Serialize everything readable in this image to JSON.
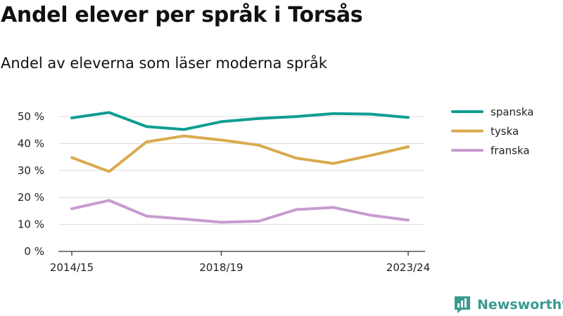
{
  "page": {
    "title": "Andel elever per språk i Torsås",
    "subtitle": "Andel av eleverna som läser moderna språk",
    "brand": "Newsworthy"
  },
  "chart_data": {
    "type": "line",
    "x_tick_labels": [
      "2014/15",
      "2018/19",
      "2023/24"
    ],
    "x_tick_indices": [
      0,
      4,
      9
    ],
    "y_tick_labels": [
      "0 %",
      "10 %",
      "20 %",
      "30 %",
      "40 %",
      "50 %"
    ],
    "y_ticks": [
      0,
      10,
      20,
      30,
      40,
      50
    ],
    "ylim": [
      0,
      56
    ],
    "grid": true,
    "legend_position": "right",
    "series": [
      {
        "name": "spanska",
        "color": "#0e9e91",
        "values": [
          49.5,
          51.5,
          46.3,
          45.2,
          48.1,
          49.3,
          50.0,
          51.1,
          50.9,
          49.7
        ]
      },
      {
        "name": "tyska",
        "color": "#d9aa4e",
        "values": [
          34.8,
          29.6,
          40.6,
          42.8,
          41.3,
          39.4,
          34.6,
          32.6,
          35.6,
          38.8
        ]
      },
      {
        "name": "franska",
        "color": "#c79bd0",
        "values": [
          15.8,
          18.9,
          13.1,
          12.0,
          10.8,
          11.2,
          15.5,
          16.3,
          13.4,
          11.6
        ]
      }
    ]
  }
}
